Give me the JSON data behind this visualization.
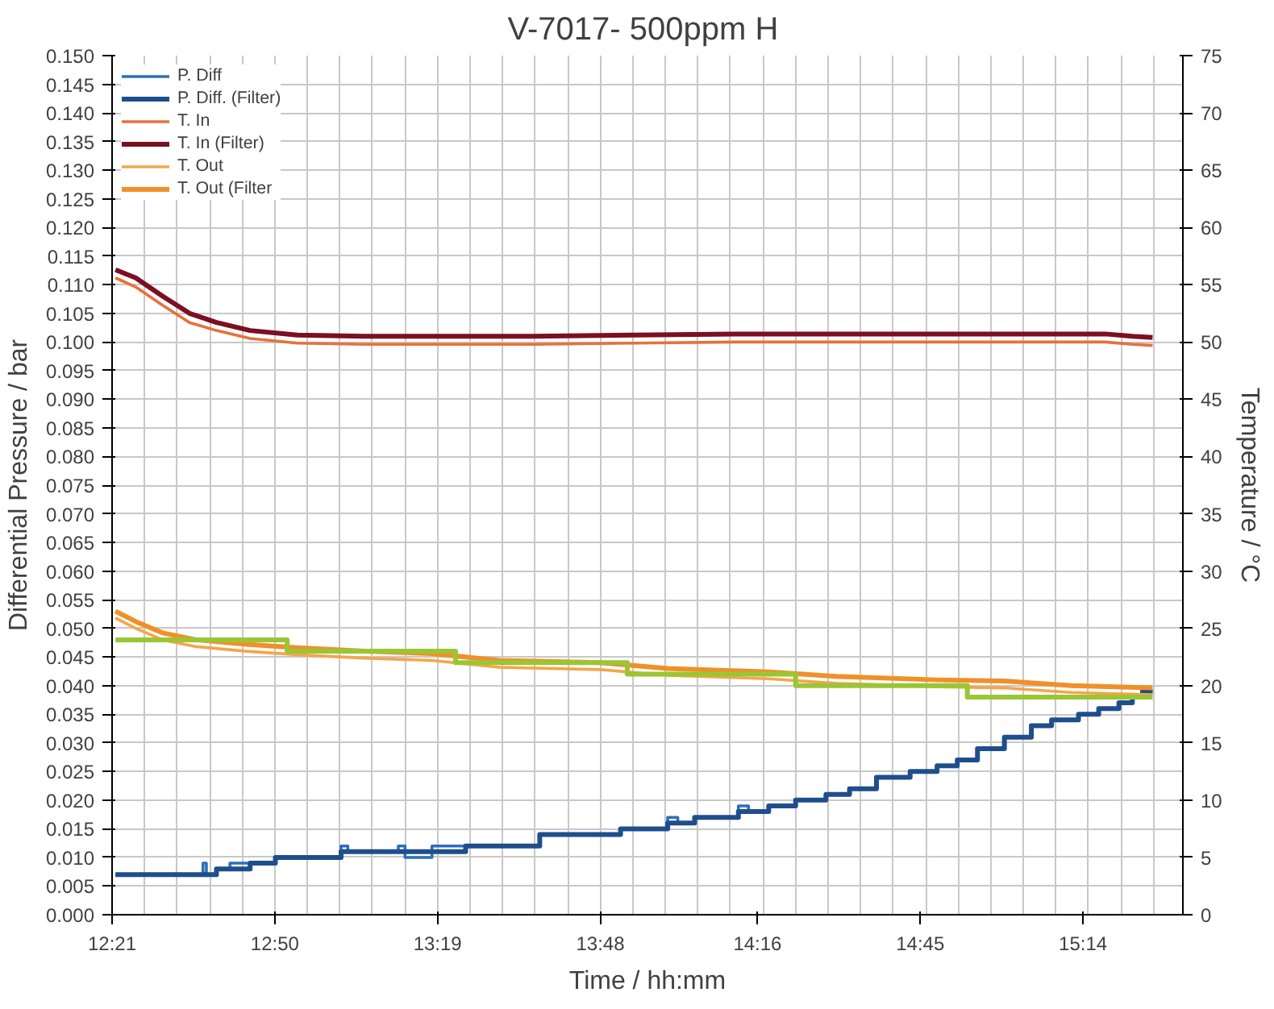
{
  "chart_data": {
    "type": "line",
    "title": "V-7017-  500ppm H",
    "xlabel": "Time / hh:mm",
    "ylabel": "Differential Pressure / bar",
    "y2label": "Temperature / °C",
    "xlim": [
      12.35,
      15.53
    ],
    "xticks": [
      {
        "value": 12.35,
        "label": "12:21"
      },
      {
        "value": 12.8333,
        "label": "12:50"
      },
      {
        "value": 13.3167,
        "label": "13:19"
      },
      {
        "value": 13.8,
        "label": "13:48"
      },
      {
        "value": 14.2667,
        "label": "14:16"
      },
      {
        "value": 14.75,
        "label": "14:45"
      },
      {
        "value": 15.2333,
        "label": "15:14"
      }
    ],
    "ylim": [
      0,
      0.15
    ],
    "yticks": [
      {
        "value": 0,
        "label": "0.000"
      },
      {
        "value": 0.005,
        "label": "0.005"
      },
      {
        "value": 0.01,
        "label": "0.010"
      },
      {
        "value": 0.015,
        "label": "0.015"
      },
      {
        "value": 0.02,
        "label": "0.020"
      },
      {
        "value": 0.025,
        "label": "0.025"
      },
      {
        "value": 0.03,
        "label": "0.030"
      },
      {
        "value": 0.035,
        "label": "0.035"
      },
      {
        "value": 0.04,
        "label": "0.040"
      },
      {
        "value": 0.045,
        "label": "0.045"
      },
      {
        "value": 0.05,
        "label": "0.050"
      },
      {
        "value": 0.055,
        "label": "0.055"
      },
      {
        "value": 0.06,
        "label": "0.060"
      },
      {
        "value": 0.065,
        "label": "0.065"
      },
      {
        "value": 0.07,
        "label": "0.070"
      },
      {
        "value": 0.075,
        "label": "0.075"
      },
      {
        "value": 0.08,
        "label": "0.080"
      },
      {
        "value": 0.085,
        "label": "0.085"
      },
      {
        "value": 0.09,
        "label": "0.090"
      },
      {
        "value": 0.095,
        "label": "0.095"
      },
      {
        "value": 0.1,
        "label": "0.100"
      },
      {
        "value": 0.105,
        "label": "0.105"
      },
      {
        "value": 0.11,
        "label": "0.110"
      },
      {
        "value": 0.115,
        "label": "0.115"
      },
      {
        "value": 0.12,
        "label": "0.120"
      },
      {
        "value": 0.125,
        "label": "0.125"
      },
      {
        "value": 0.13,
        "label": "0.130"
      },
      {
        "value": 0.135,
        "label": "0.135"
      },
      {
        "value": 0.14,
        "label": "0.140"
      },
      {
        "value": 0.145,
        "label": "0.145"
      },
      {
        "value": 0.15,
        "label": "0.150"
      }
    ],
    "y2lim": [
      0,
      75
    ],
    "y2ticks": [
      0,
      5,
      10,
      15,
      20,
      25,
      30,
      35,
      40,
      45,
      50,
      55,
      60,
      65,
      70,
      75
    ],
    "grid": true,
    "legend": "top left",
    "line_style": "solid",
    "series": [
      {
        "name": "P. Diff",
        "type": "step",
        "color": "#2e6fb8",
        "x": [
          12.36,
          12.62,
          12.63,
          12.66,
          12.7,
          12.76,
          12.835,
          13.03,
          13.05,
          13.2,
          13.22,
          13.3,
          13.4,
          13.62,
          13.86,
          14.0,
          14.03,
          14.08,
          14.21,
          14.24,
          14.3,
          14.38,
          14.47,
          14.54,
          14.62,
          14.72,
          14.8,
          14.86,
          14.92,
          15.0,
          15.08,
          15.14,
          15.22,
          15.28,
          15.34,
          15.38,
          15.41,
          15.44
        ],
        "values": [
          0.007,
          0.009,
          0.007,
          0.008,
          0.009,
          0.009,
          0.01,
          0.012,
          0.011,
          0.012,
          0.01,
          0.012,
          0.012,
          0.014,
          0.015,
          0.017,
          0.016,
          0.017,
          0.019,
          0.018,
          0.019,
          0.02,
          0.021,
          0.022,
          0.024,
          0.025,
          0.026,
          0.027,
          0.029,
          0.031,
          0.033,
          0.034,
          0.035,
          0.036,
          0.037,
          0.038,
          0.039,
          0.039
        ]
      },
      {
        "name": "P. Diff. (Filter)",
        "type": "step",
        "color": "#1f4e8c",
        "x": [
          12.36,
          12.66,
          12.76,
          12.835,
          13.03,
          13.4,
          13.62,
          13.86,
          14.0,
          14.08,
          14.21,
          14.3,
          14.38,
          14.47,
          14.54,
          14.62,
          14.72,
          14.8,
          14.86,
          14.92,
          15.0,
          15.08,
          15.14,
          15.22,
          15.28,
          15.34,
          15.38,
          15.41,
          15.44
        ],
        "values": [
          0.007,
          0.008,
          0.009,
          0.01,
          0.011,
          0.012,
          0.014,
          0.015,
          0.016,
          0.017,
          0.018,
          0.019,
          0.02,
          0.021,
          0.022,
          0.024,
          0.025,
          0.026,
          0.027,
          0.029,
          0.031,
          0.033,
          0.034,
          0.035,
          0.036,
          0.037,
          0.038,
          0.039,
          0.039
        ]
      },
      {
        "name": "T. In",
        "axis": "y2",
        "color": "#e8703a",
        "x": [
          12.36,
          12.42,
          12.5,
          12.58,
          12.66,
          12.76,
          12.9,
          13.1,
          13.4,
          13.6,
          13.9,
          14.2,
          14.6,
          15.0,
          15.3,
          15.38,
          15.44
        ],
        "values": [
          55.6,
          54.8,
          53.2,
          51.7,
          51.0,
          50.3,
          49.9,
          49.8,
          49.8,
          49.8,
          49.9,
          50.0,
          50.0,
          50.0,
          50.0,
          49.8,
          49.7
        ]
      },
      {
        "name": "T. In (Filter)",
        "axis": "y2",
        "color": "#7b0f24",
        "x": [
          12.36,
          12.42,
          12.5,
          12.58,
          12.66,
          12.76,
          12.9,
          13.1,
          13.4,
          13.6,
          13.9,
          14.2,
          14.6,
          15.0,
          15.3,
          15.38,
          15.44
        ],
        "values": [
          56.3,
          55.6,
          54.0,
          52.5,
          51.7,
          51.0,
          50.6,
          50.5,
          50.5,
          50.5,
          50.6,
          50.7,
          50.7,
          50.7,
          50.7,
          50.5,
          50.4
        ]
      },
      {
        "name": "T. Out",
        "axis": "y2",
        "color": "#f5a54a",
        "x": [
          12.36,
          12.42,
          12.5,
          12.6,
          12.75,
          12.9,
          13.1,
          13.3,
          13.5,
          13.8,
          14.0,
          14.3,
          14.5,
          14.8,
          15.0,
          15.2,
          15.44
        ],
        "values": [
          25.9,
          25.0,
          24.0,
          23.4,
          23.0,
          22.7,
          22.4,
          22.2,
          21.6,
          21.4,
          20.9,
          20.6,
          20.2,
          19.9,
          19.8,
          19.4,
          19.2
        ]
      },
      {
        "name": "T. Out (Filter",
        "axis": "y2",
        "color": "#f0902a",
        "x": [
          12.36,
          12.42,
          12.5,
          12.6,
          12.75,
          12.9,
          13.1,
          13.3,
          13.5,
          13.8,
          14.0,
          14.3,
          14.5,
          14.8,
          15.0,
          15.2,
          15.44
        ],
        "values": [
          26.5,
          25.6,
          24.6,
          24.0,
          23.6,
          23.3,
          23.0,
          22.8,
          22.2,
          22.0,
          21.5,
          21.2,
          20.8,
          20.5,
          20.4,
          20.0,
          19.8
        ]
      },
      {
        "type": "step",
        "axis": "y2",
        "color": "#9ac634",
        "x": [
          12.36,
          12.87,
          13.37,
          13.88,
          14.38,
          14.89,
          15.44
        ],
        "values": [
          24,
          23,
          22,
          21,
          20,
          19,
          19
        ]
      }
    ]
  }
}
